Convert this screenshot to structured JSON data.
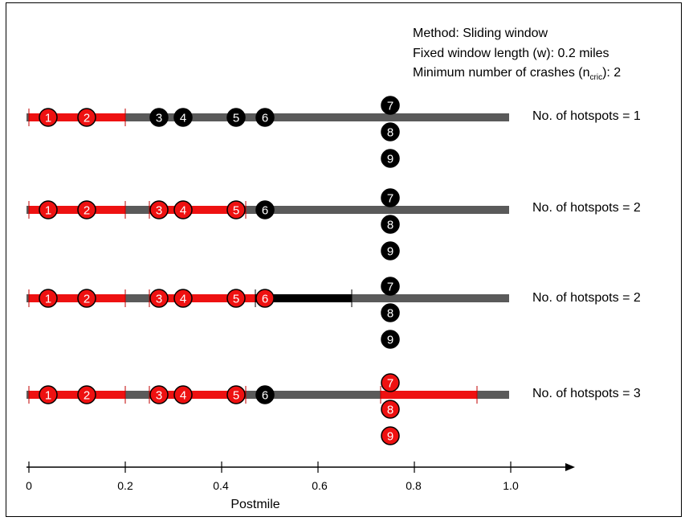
{
  "info": {
    "method": "Method: Sliding window",
    "window_length": "Fixed window length (w): 0.2 miles",
    "min_crashes_prefix": "Minimum number of crashes (n",
    "min_crashes_sub": "cric",
    "min_crashes_suffix": "): 2"
  },
  "colors": {
    "road": "#5a5a5a",
    "hotspot": "#ee1111",
    "window": "#000000",
    "crash_default": "#000000"
  },
  "rows": [
    {
      "label": "No. of hotspots = 1",
      "segments": [
        {
          "start": 0.0,
          "end": 0.2,
          "kind": "hotspot"
        }
      ],
      "crashes": [
        {
          "id": "1",
          "pos": 0.04,
          "hotspot": true
        },
        {
          "id": "2",
          "pos": 0.12,
          "hotspot": true
        },
        {
          "id": "3",
          "pos": 0.27,
          "hotspot": false
        },
        {
          "id": "4",
          "pos": 0.32,
          "hotspot": false
        },
        {
          "id": "5",
          "pos": 0.43,
          "hotspot": false
        },
        {
          "id": "6",
          "pos": 0.49,
          "hotspot": false
        },
        {
          "id": "7",
          "pos": 0.75,
          "hotspot": false,
          "stack": 0
        },
        {
          "id": "8",
          "pos": 0.75,
          "hotspot": false,
          "stack": 1
        },
        {
          "id": "9",
          "pos": 0.75,
          "hotspot": false,
          "stack": 2
        }
      ]
    },
    {
      "label": "No. of hotspots = 2",
      "segments": [
        {
          "start": 0.0,
          "end": 0.2,
          "kind": "hotspot"
        },
        {
          "start": 0.25,
          "end": 0.45,
          "kind": "hotspot"
        }
      ],
      "crashes": [
        {
          "id": "1",
          "pos": 0.04,
          "hotspot": true
        },
        {
          "id": "2",
          "pos": 0.12,
          "hotspot": true
        },
        {
          "id": "3",
          "pos": 0.27,
          "hotspot": true
        },
        {
          "id": "4",
          "pos": 0.32,
          "hotspot": true
        },
        {
          "id": "5",
          "pos": 0.43,
          "hotspot": true
        },
        {
          "id": "6",
          "pos": 0.49,
          "hotspot": false
        },
        {
          "id": "7",
          "pos": 0.75,
          "hotspot": false,
          "stack": 0
        },
        {
          "id": "8",
          "pos": 0.75,
          "hotspot": false,
          "stack": 1
        },
        {
          "id": "9",
          "pos": 0.75,
          "hotspot": false,
          "stack": 2
        }
      ]
    },
    {
      "label": "No. of hotspots = 2",
      "segments": [
        {
          "start": 0.0,
          "end": 0.2,
          "kind": "hotspot"
        },
        {
          "start": 0.25,
          "end": 0.47,
          "kind": "hotspot"
        },
        {
          "start": 0.47,
          "end": 0.67,
          "kind": "window"
        }
      ],
      "crashes": [
        {
          "id": "1",
          "pos": 0.04,
          "hotspot": true
        },
        {
          "id": "2",
          "pos": 0.12,
          "hotspot": true
        },
        {
          "id": "3",
          "pos": 0.27,
          "hotspot": true
        },
        {
          "id": "4",
          "pos": 0.32,
          "hotspot": true
        },
        {
          "id": "5",
          "pos": 0.43,
          "hotspot": true
        },
        {
          "id": "6",
          "pos": 0.49,
          "hotspot": true
        },
        {
          "id": "7",
          "pos": 0.75,
          "hotspot": false,
          "stack": 0
        },
        {
          "id": "8",
          "pos": 0.75,
          "hotspot": false,
          "stack": 1
        },
        {
          "id": "9",
          "pos": 0.75,
          "hotspot": false,
          "stack": 2
        }
      ]
    },
    {
      "label": "No. of hotspots = 3",
      "segments": [
        {
          "start": 0.0,
          "end": 0.2,
          "kind": "hotspot"
        },
        {
          "start": 0.25,
          "end": 0.45,
          "kind": "hotspot"
        },
        {
          "start": 0.73,
          "end": 0.93,
          "kind": "hotspot"
        }
      ],
      "crashes": [
        {
          "id": "1",
          "pos": 0.04,
          "hotspot": true
        },
        {
          "id": "2",
          "pos": 0.12,
          "hotspot": true
        },
        {
          "id": "3",
          "pos": 0.27,
          "hotspot": true
        },
        {
          "id": "4",
          "pos": 0.32,
          "hotspot": true
        },
        {
          "id": "5",
          "pos": 0.43,
          "hotspot": true
        },
        {
          "id": "6",
          "pos": 0.49,
          "hotspot": false
        },
        {
          "id": "7",
          "pos": 0.75,
          "hotspot": true,
          "stack": 0
        },
        {
          "id": "8",
          "pos": 0.75,
          "hotspot": true,
          "stack": 1
        },
        {
          "id": "9",
          "pos": 0.75,
          "hotspot": true,
          "stack": 2
        }
      ]
    }
  ],
  "axis": {
    "ticks": [
      "0",
      "0.2",
      "0.4",
      "0.6",
      "0.8",
      "1.0"
    ],
    "label": "Postmile"
  }
}
